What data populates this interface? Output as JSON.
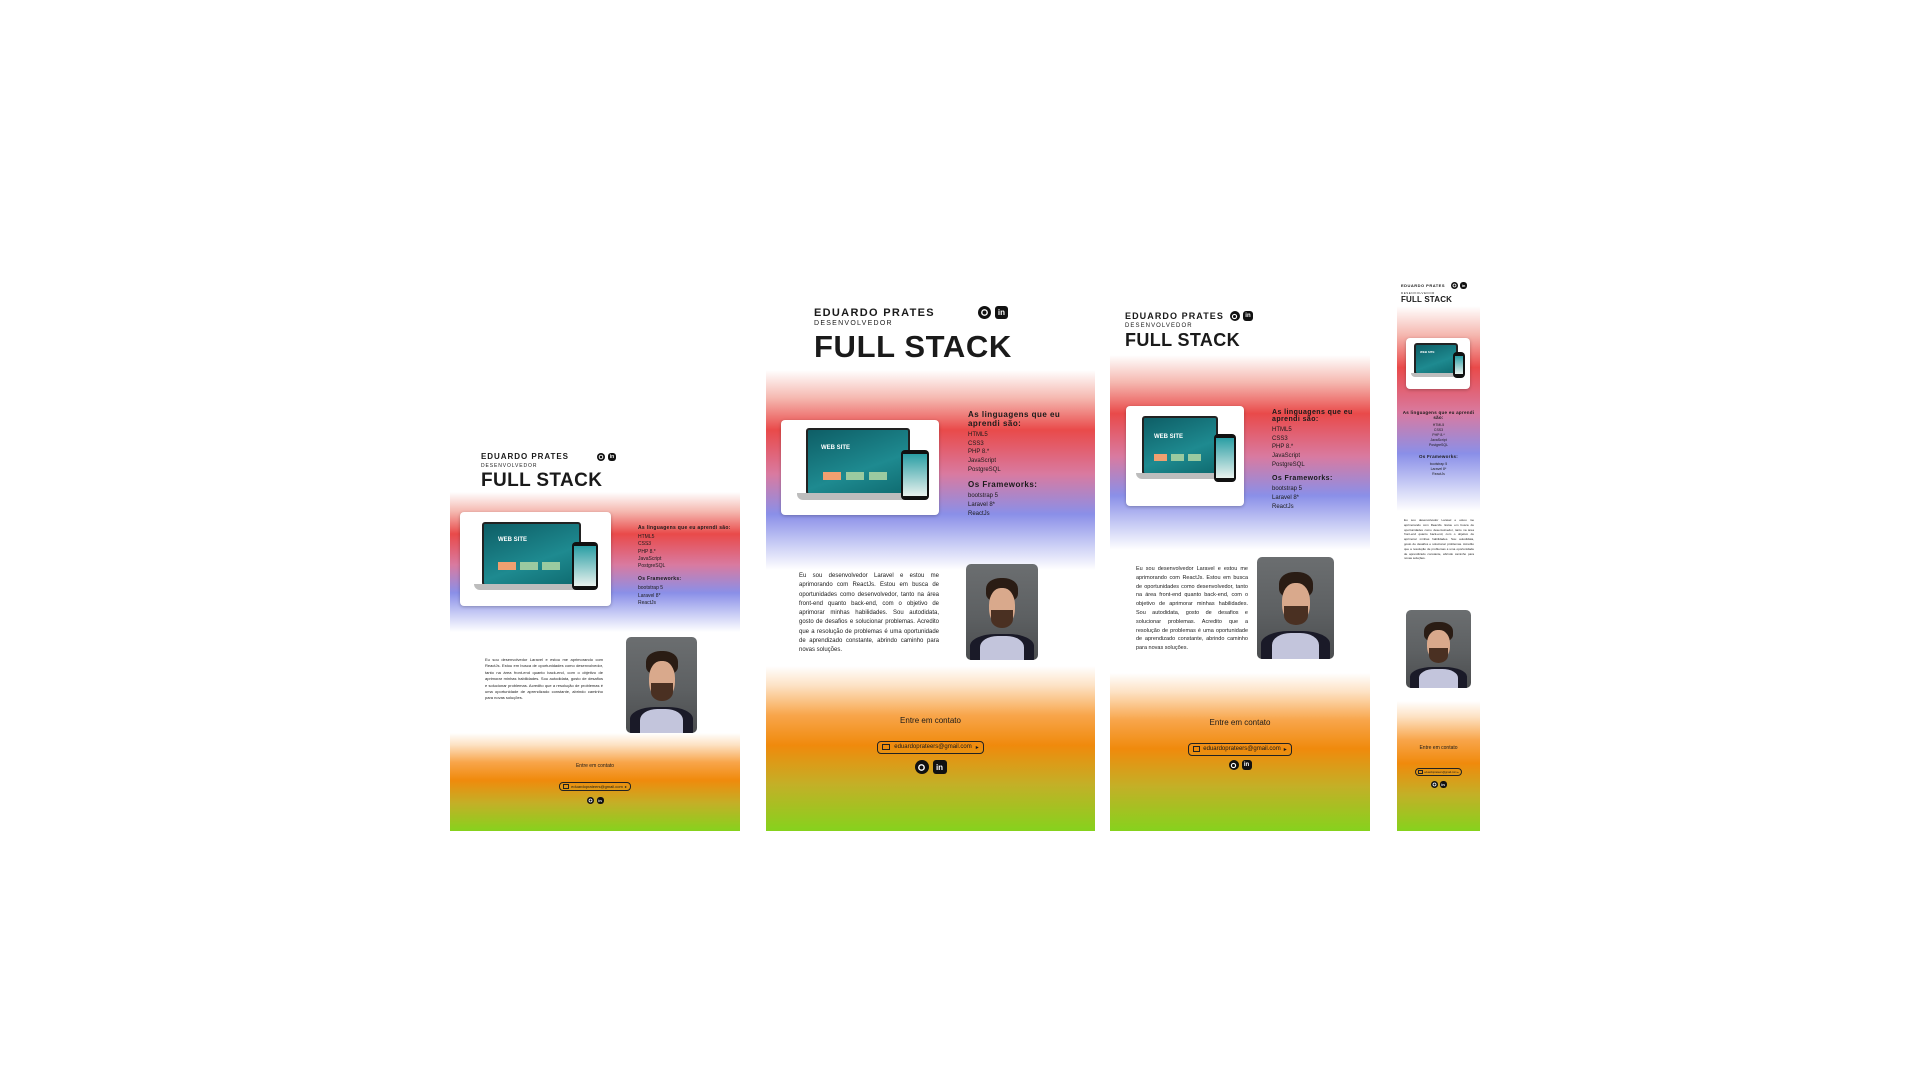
{
  "name": "EDUARDO PRATES",
  "role": "DESENVOLVEDOR",
  "title": "FULL STACK",
  "mockup_text": "WEB SITE",
  "languages_heading": "As linguagens que eu aprendi são:",
  "languages": [
    "HTML5",
    "CSS3",
    "PHP 8.*",
    "JavaScript",
    "PostgreSQL"
  ],
  "frameworks_heading": "Os Frameworks:",
  "frameworks": [
    "bootstrap 5",
    "Laravel 8*",
    "ReactJs"
  ],
  "bio": "Eu sou desenvolvedor Laravel e estou me aprimorando com ReactJs. Estou em busca de oportunidades como desenvolvedor, tanto na área front-end quanto back-end, com o objetivo de aprimorar minhas habilidades. Sou autodidata, gosto de desafios e solucionar problemas. Acredito que a resolução de problemas é uma oportunidade de aprendizado constante, abrindo caminho para novas soluções.",
  "contact_label": "Entre em contato",
  "email": "eduardoprateers@gmail.com",
  "icons": {
    "github": "github-icon",
    "linkedin": "linkedin-icon",
    "mail": "mail-icon",
    "arrow": "arrow-right-icon"
  },
  "colors": {
    "red": "#e94a4a",
    "blue": "#8a8fe8",
    "orange": "#f08a0c",
    "green": "#86d21d",
    "teal": "#1e8a90"
  }
}
